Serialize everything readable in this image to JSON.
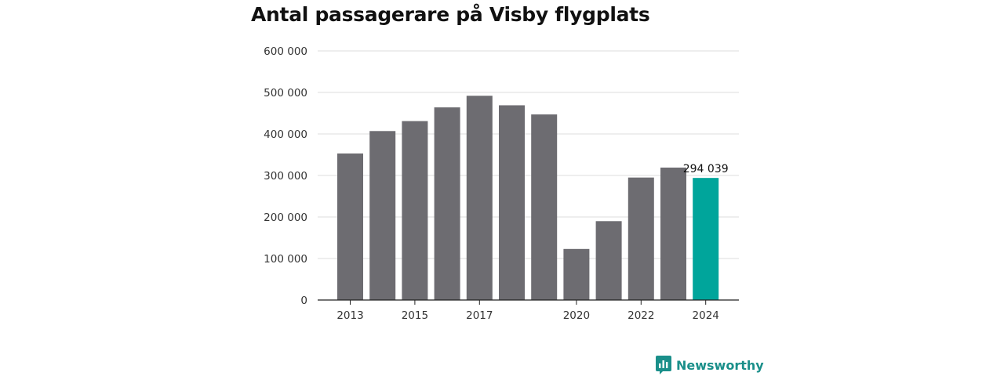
{
  "chart_data": {
    "type": "bar",
    "title": "Antal passagerare på Visby flygplats",
    "categories": [
      "2013",
      "2014",
      "2015",
      "2016",
      "2017",
      "2018",
      "2019",
      "2020",
      "2021",
      "2022",
      "2023",
      "2024"
    ],
    "values": [
      353000,
      407000,
      431000,
      464000,
      492000,
      469000,
      447000,
      123000,
      190000,
      295000,
      319000,
      294039
    ],
    "highlight_index": 11,
    "highlight_label": "294 039",
    "x_tick_labels": [
      "2013",
      "",
      "2015",
      "",
      "2017",
      "",
      "",
      "2020",
      "",
      "2022",
      "",
      "2024"
    ],
    "y_ticks": [
      0,
      100000,
      200000,
      300000,
      400000,
      500000,
      600000
    ],
    "y_tick_labels": [
      "0",
      "100 000",
      "200 000",
      "300 000",
      "400 000",
      "500 000",
      "600 000"
    ],
    "ylim": [
      0,
      600000
    ],
    "grid": true,
    "colors": {
      "bar": "#6d6c71",
      "highlight": "#00a59b",
      "grid": "#dcdcdc",
      "axis": "#222222"
    }
  },
  "brand": {
    "name": "Newsworthy",
    "icon": "bar-chart-badge-icon",
    "color": "#1a8f8a"
  }
}
